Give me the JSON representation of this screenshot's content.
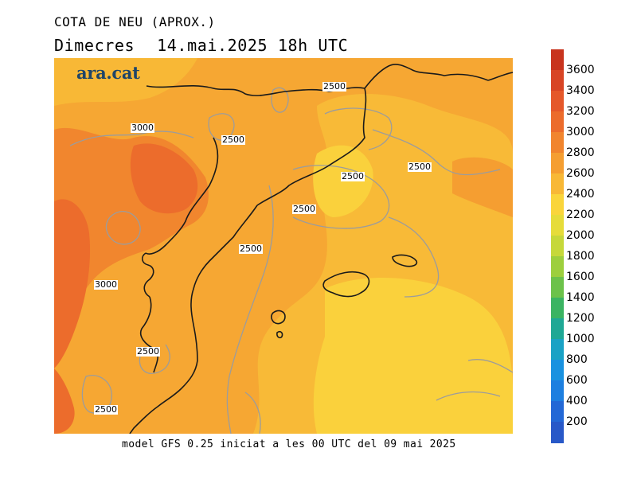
{
  "header": {
    "title": "COTA DE NEU (APROX.)",
    "day": "Dimecres",
    "datetime": "14.mai.2025 18h UTC"
  },
  "map": {
    "logo": "ara.cat",
    "contour_labels": [
      {
        "text": "2500"
      },
      {
        "text": "3000"
      },
      {
        "text": "2500"
      },
      {
        "text": "2500"
      },
      {
        "text": "2500"
      },
      {
        "text": "2500"
      },
      {
        "text": "2500"
      },
      {
        "text": "3000"
      },
      {
        "text": "2500"
      },
      {
        "text": "2500"
      }
    ]
  },
  "footer": {
    "text": "model GFS 0.25 iniciat a les 00 UTC del 09 mai 2025"
  },
  "legend": {
    "levels": [
      {
        "label": "3600",
        "color": "#c8341e"
      },
      {
        "label": "3400",
        "color": "#d84525"
      },
      {
        "label": "3200",
        "color": "#e5582a"
      },
      {
        "label": "3000",
        "color": "#ec6c2c"
      },
      {
        "label": "2800",
        "color": "#f1852e"
      },
      {
        "label": "2600",
        "color": "#f59e31"
      },
      {
        "label": "2400",
        "color": "#f8b836"
      },
      {
        "label": "2200",
        "color": "#fad53b"
      },
      {
        "label": "2000",
        "color": "#e6dc3a"
      },
      {
        "label": "1800",
        "color": "#c6d83a"
      },
      {
        "label": "1600",
        "color": "#9dcf3d"
      },
      {
        "label": "1400",
        "color": "#6cc24a"
      },
      {
        "label": "1200",
        "color": "#3bb462"
      },
      {
        "label": "1000",
        "color": "#1fa895"
      },
      {
        "label": "800",
        "color": "#1aa2c5"
      },
      {
        "label": "600",
        "color": "#1a92e0"
      },
      {
        "label": "400",
        "color": "#1d7fe0"
      },
      {
        "label": "200",
        "color": "#2368d6"
      },
      {
        "label": "",
        "color": "#2858c8"
      }
    ]
  }
}
